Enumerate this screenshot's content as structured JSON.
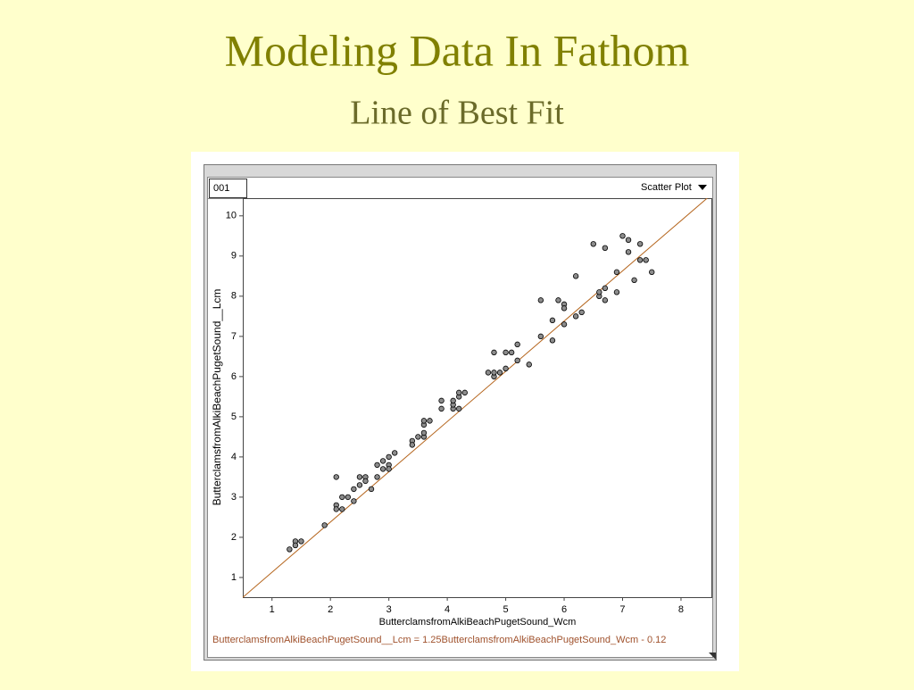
{
  "slide": {
    "title": "Modeling Data In Fathom",
    "subtitle": "Line of Best Fit"
  },
  "window": {
    "case_label": "001",
    "plot_menu": "Scatter Plot"
  },
  "chart_data": {
    "type": "scatter",
    "x_label": "ButterclamsfromAlkiBeachPugetSound_Wcm",
    "y_label": "ButterclamsfromAlkiBeachPugetSound__Lcm",
    "equation": "ButterclamsfromAlkiBeachPugetSound__Lcm = 1.25ButterclamsfromAlkiBeachPugetSound_Wcm - 0.12",
    "fit": {
      "slope": 1.25,
      "intercept": -0.12,
      "color": "#b5651d"
    },
    "xlim": [
      0.5,
      8.52
    ],
    "ylim": [
      0.51,
      10.44
    ],
    "xticks": [
      1,
      2,
      3,
      4,
      5,
      6,
      7,
      8
    ],
    "yticks": [
      1,
      2,
      3,
      4,
      5,
      6,
      7,
      8,
      9,
      10
    ],
    "grid": false,
    "series": [
      {
        "color": "#8c8c8c",
        "x": [
          1.3,
          1.4,
          1.4,
          1.5,
          1.9,
          2.1,
          2.1,
          2.1,
          2.2,
          2.2,
          2.3,
          2.4,
          2.4,
          2.5,
          2.5,
          2.6,
          2.6,
          2.7,
          2.8,
          2.8,
          2.9,
          2.9,
          3.0,
          3.0,
          3.0,
          3.1,
          3.4,
          3.4,
          3.5,
          3.6,
          3.6,
          3.6,
          3.6,
          3.7,
          3.9,
          3.9,
          4.1,
          4.1,
          4.1,
          4.2,
          4.2,
          4.2,
          4.3,
          4.7,
          4.8,
          4.8,
          4.8,
          4.9,
          5.0,
          5.0,
          5.1,
          5.2,
          5.2,
          5.4,
          5.6,
          5.6,
          5.8,
          5.8,
          5.9,
          6.0,
          6.0,
          6.0,
          6.2,
          6.2,
          6.3,
          6.5,
          6.6,
          6.6,
          6.7,
          6.7,
          6.7,
          6.9,
          6.9,
          7.0,
          7.1,
          7.1,
          7.2,
          7.3,
          7.3,
          7.4,
          7.5
        ],
        "y": [
          1.7,
          1.9,
          1.8,
          1.9,
          2.3,
          3.5,
          2.8,
          2.7,
          2.7,
          3.0,
          3.0,
          2.9,
          3.2,
          3.3,
          3.5,
          3.5,
          3.4,
          3.2,
          3.8,
          3.5,
          3.9,
          3.7,
          3.8,
          3.7,
          4.0,
          4.1,
          4.4,
          4.3,
          4.5,
          4.5,
          4.6,
          4.8,
          4.9,
          4.9,
          5.4,
          5.2,
          5.2,
          5.3,
          5.4,
          5.5,
          5.6,
          5.2,
          5.6,
          6.1,
          6.0,
          6.1,
          6.6,
          6.1,
          6.6,
          6.2,
          6.6,
          6.4,
          6.8,
          6.3,
          7.0,
          7.9,
          6.9,
          7.4,
          7.9,
          7.3,
          7.8,
          7.7,
          7.5,
          8.5,
          7.6,
          9.3,
          8.0,
          8.1,
          8.2,
          7.9,
          9.2,
          8.1,
          8.6,
          9.5,
          9.4,
          9.1,
          8.4,
          9.3,
          8.9,
          8.9,
          8.6
        ]
      }
    ]
  }
}
